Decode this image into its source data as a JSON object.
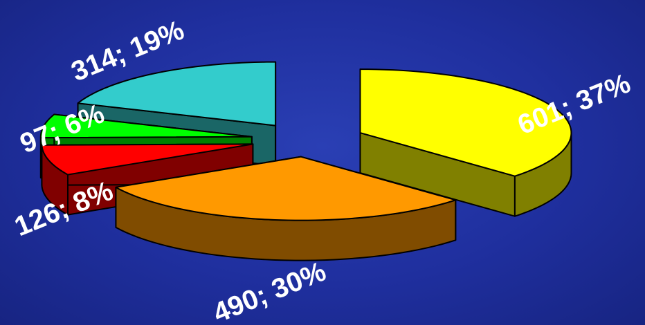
{
  "chart_data": {
    "type": "pie",
    "style": "3d-exploded",
    "title": "",
    "slices": [
      {
        "value": 601,
        "percent": 37,
        "label": "601; 37%",
        "color": "#ffff00",
        "side_color": "#808000"
      },
      {
        "value": 490,
        "percent": 30,
        "label": "490; 30%",
        "color": "#ff9900",
        "side_color": "#804c00"
      },
      {
        "value": 126,
        "percent": 8,
        "label": "126; 8%",
        "color": "#ff0000",
        "side_color": "#800000"
      },
      {
        "value": 97,
        "percent": 6,
        "label": "97; 6%",
        "color": "#00ff00",
        "side_color": "#008000"
      },
      {
        "value": 314,
        "percent": 19,
        "label": "314; 19%",
        "color": "#33cccc",
        "side_color": "#1a6666"
      }
    ],
    "legend": "none",
    "background": "#1f2f9e"
  }
}
